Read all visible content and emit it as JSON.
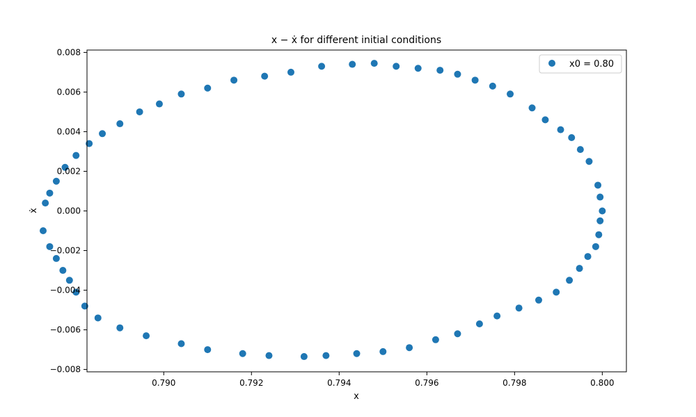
{
  "chart_data": {
    "type": "scatter",
    "title": "x − ẋ for different initial conditions",
    "xlabel": "x",
    "ylabel": "ẋ",
    "xlim": [
      0.78825,
      0.80055
    ],
    "ylim": [
      -0.00812,
      0.00812
    ],
    "xticks": [
      0.79,
      0.792,
      0.794,
      0.796,
      0.798,
      0.8
    ],
    "xtick_labels": [
      "0.790",
      "0.792",
      "0.794",
      "0.796",
      "0.798",
      "0.800"
    ],
    "yticks": [
      -0.008,
      -0.006,
      -0.004,
      -0.002,
      0.0,
      0.002,
      0.004,
      0.006,
      0.008
    ],
    "ytick_labels": [
      "−0.008",
      "−0.006",
      "−0.004",
      "−0.002",
      "0.000",
      "0.002",
      "0.004",
      "0.006",
      "0.008"
    ],
    "grid": false,
    "legend_position": "upper right",
    "colors": {
      "series": "#1f77b4"
    },
    "series": [
      {
        "name": "x0 = 0.80",
        "points": [
          [
            0.8,
            0.0
          ],
          [
            0.79995,
            -0.0005
          ],
          [
            0.79992,
            -0.0012
          ],
          [
            0.79985,
            -0.0018
          ],
          [
            0.79967,
            -0.0023
          ],
          [
            0.79948,
            -0.0029
          ],
          [
            0.79925,
            -0.0035
          ],
          [
            0.79895,
            -0.0041
          ],
          [
            0.79855,
            -0.0045
          ],
          [
            0.7981,
            -0.0049
          ],
          [
            0.7976,
            -0.0053
          ],
          [
            0.7972,
            -0.0057
          ],
          [
            0.7967,
            -0.0062
          ],
          [
            0.7962,
            -0.0065
          ],
          [
            0.7956,
            -0.0069
          ],
          [
            0.795,
            -0.0071
          ],
          [
            0.7944,
            -0.0072
          ],
          [
            0.7937,
            -0.0073
          ],
          [
            0.7932,
            -0.00735
          ],
          [
            0.7924,
            -0.0073
          ],
          [
            0.7918,
            -0.0072
          ],
          [
            0.791,
            -0.007
          ],
          [
            0.7904,
            -0.0067
          ],
          [
            0.7896,
            -0.0063
          ],
          [
            0.789,
            -0.0059
          ],
          [
            0.7885,
            -0.0054
          ],
          [
            0.7882,
            -0.0048
          ],
          [
            0.788,
            -0.0041
          ],
          [
            0.78785,
            -0.0035
          ],
          [
            0.7877,
            -0.003
          ],
          [
            0.78755,
            -0.0024
          ],
          [
            0.7874,
            -0.0018
          ],
          [
            0.78725,
            -0.001
          ],
          [
            0.7873,
            0.0004
          ],
          [
            0.7874,
            0.0009
          ],
          [
            0.78755,
            0.0015
          ],
          [
            0.78775,
            0.0022
          ],
          [
            0.788,
            0.0028
          ],
          [
            0.7883,
            0.0034
          ],
          [
            0.7886,
            0.0039
          ],
          [
            0.789,
            0.0044
          ],
          [
            0.78945,
            0.005
          ],
          [
            0.7899,
            0.0054
          ],
          [
            0.7904,
            0.0059
          ],
          [
            0.791,
            0.0062
          ],
          [
            0.7916,
            0.0066
          ],
          [
            0.7923,
            0.0068
          ],
          [
            0.7929,
            0.007
          ],
          [
            0.7936,
            0.0073
          ],
          [
            0.7943,
            0.0074
          ],
          [
            0.7948,
            0.00745
          ],
          [
            0.7953,
            0.0073
          ],
          [
            0.7958,
            0.0072
          ],
          [
            0.7963,
            0.0071
          ],
          [
            0.7967,
            0.0069
          ],
          [
            0.7971,
            0.0066
          ],
          [
            0.7975,
            0.0063
          ],
          [
            0.7979,
            0.0059
          ],
          [
            0.7984,
            0.0052
          ],
          [
            0.7987,
            0.0046
          ],
          [
            0.79905,
            0.0041
          ],
          [
            0.7993,
            0.0037
          ],
          [
            0.7995,
            0.0031
          ],
          [
            0.7997,
            0.0025
          ],
          [
            0.7999,
            0.0013
          ],
          [
            0.79995,
            0.0007
          ]
        ]
      }
    ]
  }
}
